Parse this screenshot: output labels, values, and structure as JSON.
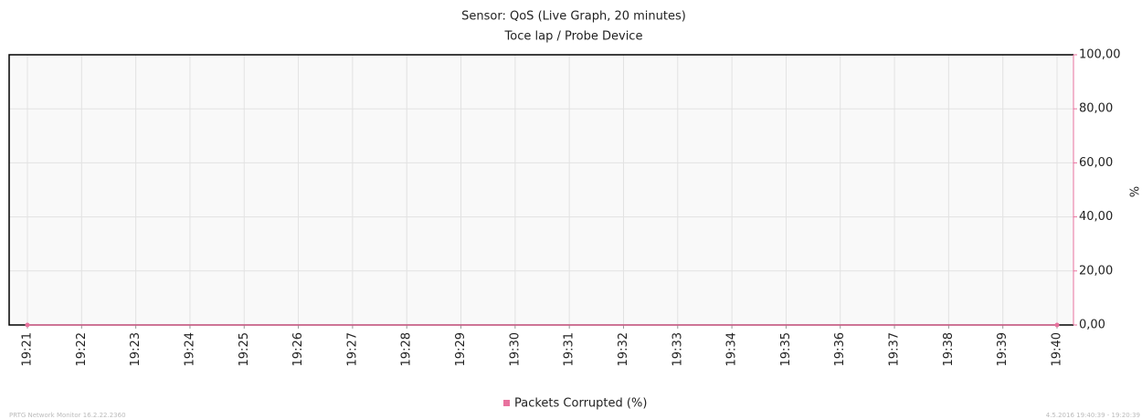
{
  "chart_data": {
    "type": "line",
    "title": "Sensor: QoS (Live Graph, 20 minutes)",
    "subtitle": "Toce lap / Probe Device",
    "y_label": "%",
    "categories": [
      "19:21",
      "19:22",
      "19:23",
      "19:24",
      "19:25",
      "19:26",
      "19:27",
      "19:28",
      "19:29",
      "19:30",
      "19:31",
      "19:32",
      "19:33",
      "19:34",
      "19:35",
      "19:36",
      "19:37",
      "19:38",
      "19:39",
      "19:40"
    ],
    "series": [
      {
        "name": "Packets Corrupted (%)",
        "color": "#e8729e",
        "values": [
          0,
          0,
          0,
          0,
          0,
          0,
          0,
          0,
          0,
          0,
          0,
          0,
          0,
          0,
          0,
          0,
          0,
          0,
          0,
          0
        ]
      }
    ],
    "ylim": [
      0,
      100
    ],
    "yticks": [
      {
        "value": 0,
        "label": "0,00"
      },
      {
        "value": 20,
        "label": "20,00"
      },
      {
        "value": 40,
        "label": "40,00"
      },
      {
        "value": 60,
        "label": "60,00"
      },
      {
        "value": 80,
        "label": "80,00"
      },
      {
        "value": 100,
        "label": "100,00"
      }
    ],
    "grid": true,
    "legend": "bottom",
    "footer_left": "PRTG Network Monitor 16.2.22.2360",
    "footer_right": "4.5.2016 19:40:39 - 19:20:39"
  }
}
